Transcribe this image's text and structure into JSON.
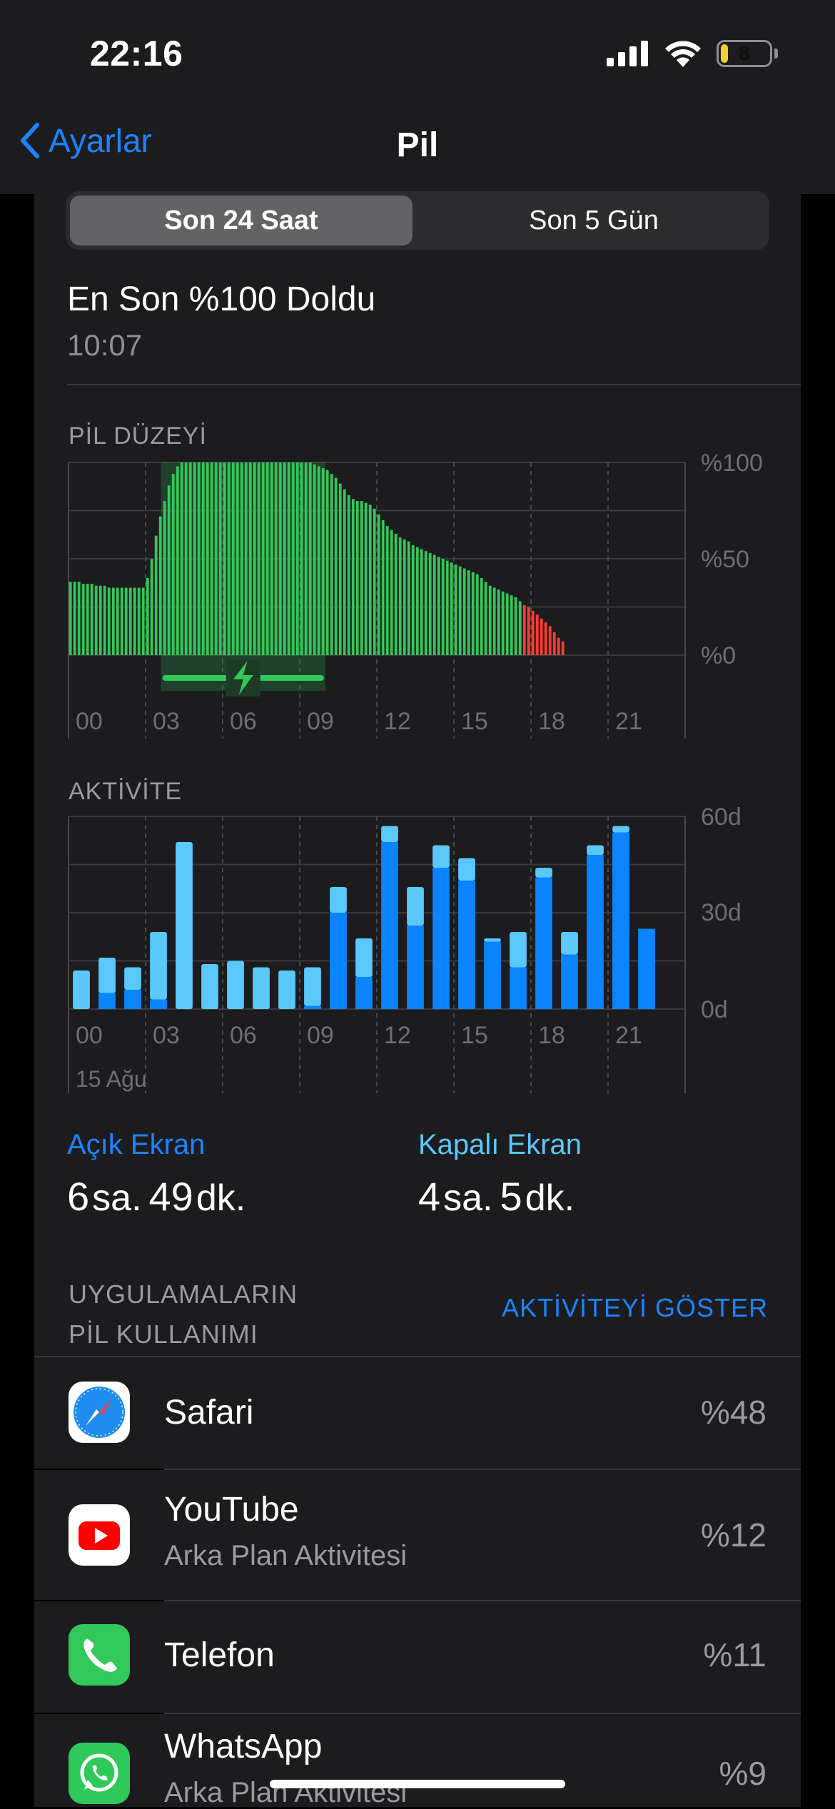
{
  "status_bar": {
    "time": "22:16",
    "battery_level": "8"
  },
  "nav": {
    "back_label": "Ayarlar",
    "title": "Pil"
  },
  "segment": {
    "options": [
      "Son 24 Saat",
      "Son 5 Gün"
    ],
    "selected": "Son 24 Saat"
  },
  "last_charge": {
    "title": "En Son %100 Doldu",
    "time": "10:07"
  },
  "battery_chart": {
    "label": "PİL DÜZEYİ",
    "y_ticks": [
      "%100",
      "%50",
      "%0"
    ],
    "x_ticks": [
      "00",
      "03",
      "06",
      "09",
      "12",
      "15",
      "18",
      "21"
    ]
  },
  "activity_chart": {
    "label": "AKTİVİTE",
    "y_ticks": [
      "60d",
      "30d",
      "0d"
    ],
    "x_ticks": [
      "00",
      "03",
      "06",
      "09",
      "12",
      "15",
      "18",
      "21"
    ],
    "date_label": "15 Ağu"
  },
  "chart_data": [
    {
      "type": "bar",
      "title": "PİL DÜZEYİ",
      "x_ticks": [
        "00",
        "03",
        "06",
        "09",
        "12",
        "15",
        "18",
        "21"
      ],
      "ylim": [
        0,
        100
      ],
      "charging_window_hours": [
        3.6,
        10.0
      ],
      "values": [
        38,
        38,
        38,
        37,
        37,
        37,
        36,
        36,
        36,
        35,
        35,
        35,
        35,
        35,
        35,
        35,
        35,
        35,
        40,
        50,
        62,
        72,
        80,
        88,
        94,
        98,
        100,
        100,
        100,
        100,
        100,
        100,
        100,
        100,
        100,
        100,
        100,
        100,
        100,
        100,
        100,
        100,
        100,
        100,
        100,
        100,
        100,
        100,
        100,
        100,
        100,
        100,
        100,
        100,
        100,
        100,
        100,
        99,
        98,
        97,
        96,
        94,
        92,
        89,
        86,
        83,
        81,
        80,
        80,
        79,
        78,
        76,
        73,
        70,
        67,
        65,
        63,
        61,
        60,
        59,
        57,
        56,
        55,
        54,
        53,
        52,
        51,
        50,
        49,
        48,
        47,
        46,
        45,
        44,
        43,
        42,
        40,
        38,
        36,
        35,
        34,
        33,
        32,
        31,
        30,
        28,
        26,
        25,
        23,
        21,
        19,
        17,
        15,
        12,
        9,
        7
      ],
      "red_from_index": 106
    },
    {
      "type": "bar",
      "title": "AKTİVİTE",
      "categories": [
        "00",
        "01",
        "02",
        "03",
        "04",
        "05",
        "06",
        "07",
        "08",
        "09",
        "10",
        "11",
        "12",
        "13",
        "14",
        "15",
        "16",
        "17",
        "18",
        "19",
        "20",
        "21",
        "22"
      ],
      "ylim": [
        0,
        60
      ],
      "series": [
        {
          "name": "Açık Ekran",
          "values": [
            0,
            5,
            6,
            3,
            0,
            0,
            0,
            0,
            0,
            1,
            30,
            10,
            52,
            26,
            44,
            40,
            21,
            13,
            41,
            17,
            48,
            55,
            25
          ]
        },
        {
          "name": "Kapalı Ekran",
          "values": [
            12,
            11,
            7,
            21,
            52,
            14,
            15,
            13,
            12,
            12,
            8,
            12,
            5,
            12,
            7,
            7,
            1,
            11,
            3,
            7,
            3,
            2,
            0
          ]
        }
      ]
    }
  ],
  "stats": {
    "screen_on": {
      "label": "Açık Ekran",
      "hours": "6",
      "hours_unit": "sa.",
      "minutes": "49",
      "minutes_unit": "dk."
    },
    "screen_off": {
      "label": "Kapalı Ekran",
      "hours": "4",
      "hours_unit": "sa.",
      "minutes": "5",
      "minutes_unit": "dk."
    }
  },
  "apps_section": {
    "title_line1": "UYGULAMALARIN",
    "title_line2": "PİL KULLANIMI",
    "action": "AKTİVİTEYİ GÖSTER",
    "apps": [
      {
        "name": "Safari",
        "subtitle": "",
        "percent": "%48",
        "icon": "safari-icon"
      },
      {
        "name": "YouTube",
        "subtitle": "Arka Plan Aktivitesi",
        "percent": "%12",
        "icon": "youtube-icon"
      },
      {
        "name": "Telefon",
        "subtitle": "",
        "percent": "%11",
        "icon": "phone-icon"
      },
      {
        "name": "WhatsApp",
        "subtitle": "Arka Plan Aktivitesi",
        "percent": "%9",
        "icon": "whatsapp-icon"
      }
    ]
  },
  "colors": {
    "accent": "#1b84ff",
    "battery_green": "#34c759",
    "battery_red": "#ff3b30",
    "activity_on": "#0a84ff",
    "activity_off": "#5ac8fa"
  }
}
